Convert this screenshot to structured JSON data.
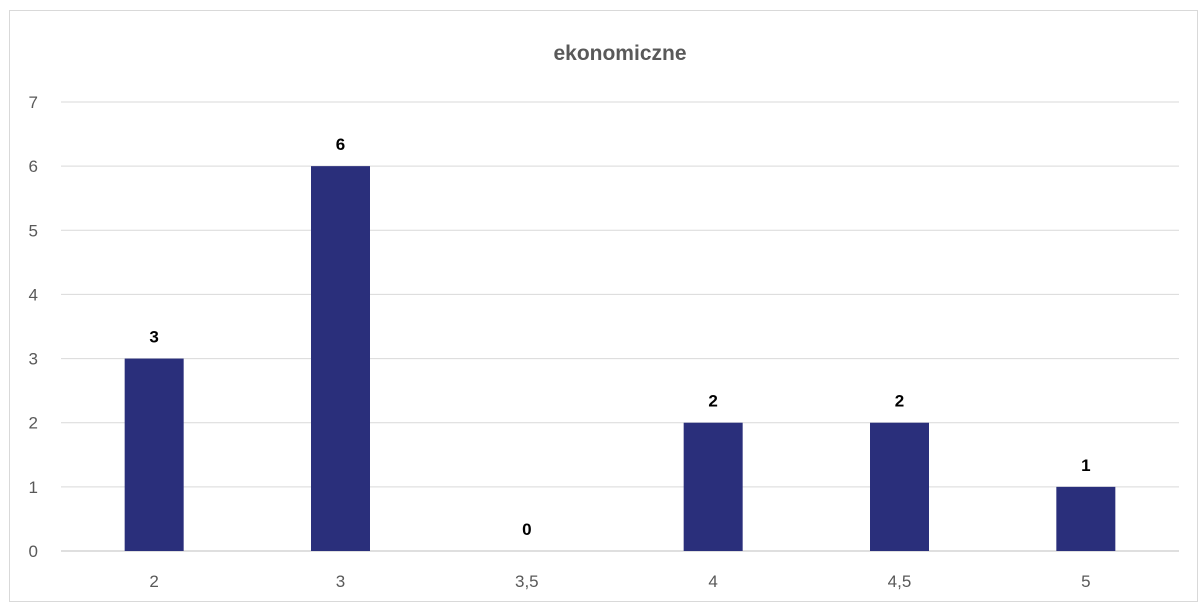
{
  "chart_data": {
    "type": "bar",
    "title": "ekonomiczne",
    "xlabel": "",
    "ylabel": "",
    "categories": [
      "2",
      "3",
      "3,5",
      "4",
      "4,5",
      "5"
    ],
    "values": [
      3,
      6,
      0,
      2,
      2,
      1
    ],
    "data_labels": [
      "3",
      "6",
      "0",
      "2",
      "2",
      "1"
    ],
    "ylim": [
      0,
      7
    ],
    "y_ticks": [
      "0",
      "1",
      "2",
      "3",
      "4",
      "5",
      "6",
      "7"
    ],
    "grid": true,
    "legend": "none",
    "bar_color": "#2a2f7b"
  }
}
